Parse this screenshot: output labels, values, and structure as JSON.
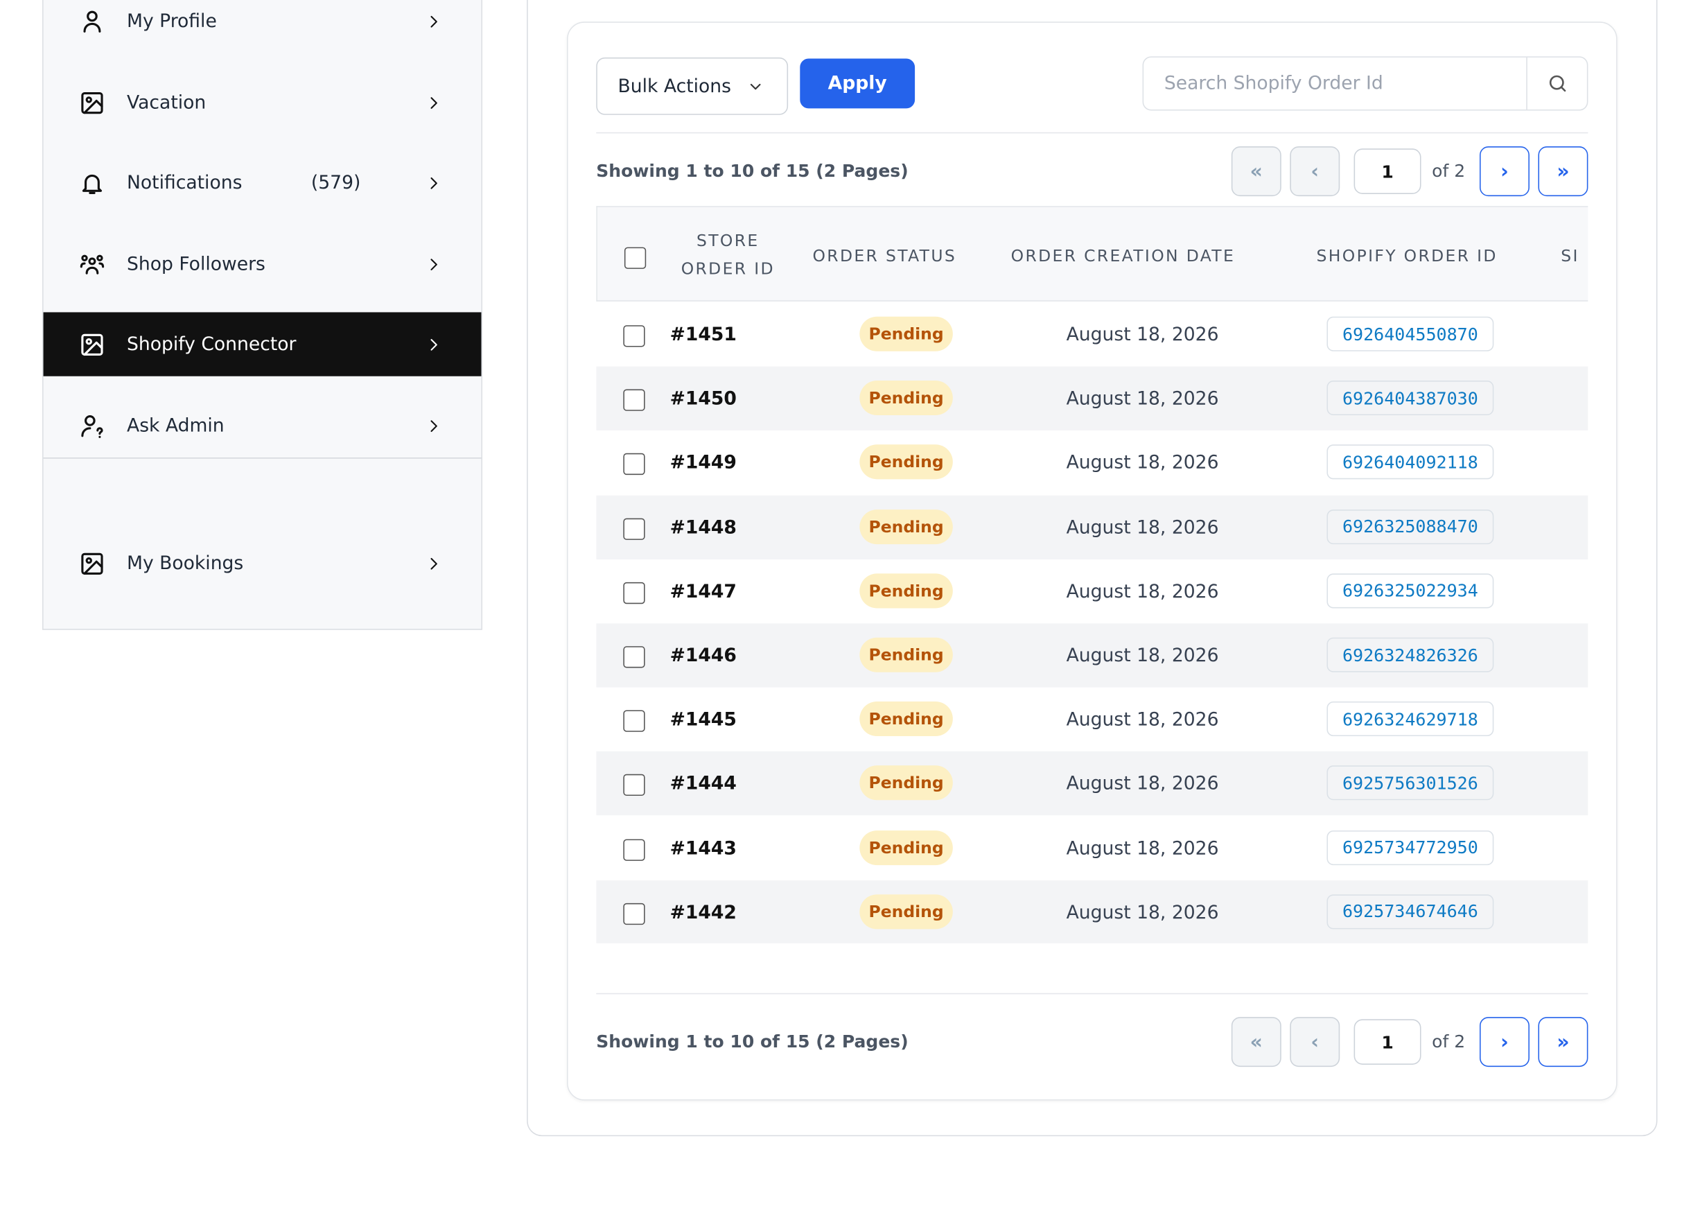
{
  "sidebar": {
    "items": [
      {
        "label": "My Profile"
      },
      {
        "label": "Vacation"
      },
      {
        "label": "Notifications",
        "count": "(579)"
      },
      {
        "label": "Shop Followers"
      },
      {
        "label": "Shopify Connector",
        "active": true
      },
      {
        "label": "Ask Admin"
      }
    ],
    "bottom_items": [
      {
        "label": "My Bookings"
      }
    ]
  },
  "toolbar": {
    "bulk_actions": "Bulk Actions",
    "apply": "Apply",
    "search_placeholder": "Search Shopify Order Id"
  },
  "pagination_top": {
    "summary": "Showing 1 to 10 of 15 (2 Pages)",
    "first": "«",
    "prev": "‹",
    "page": "1",
    "of": "of 2",
    "next": "›",
    "last": "»"
  },
  "table": {
    "headers": [
      "STORE ORDER ID",
      "ORDER STATUS",
      "ORDER CREATION DATE",
      "SHOPIFY ORDER ID",
      "SI"
    ],
    "rows": [
      [
        "#1451",
        "Pending",
        "August 18, 2026",
        "6926404550870"
      ],
      [
        "#1450",
        "Pending",
        "August 18, 2026",
        "6926404387030"
      ],
      [
        "#1449",
        "Pending",
        "August 18, 2026",
        "6926404092118"
      ],
      [
        "#1448",
        "Pending",
        "August 18, 2026",
        "6926325088470"
      ],
      [
        "#1447",
        "Pending",
        "August 18, 2026",
        "6926325022934"
      ],
      [
        "#1446",
        "Pending",
        "August 18, 2026",
        "6926324826326"
      ],
      [
        "#1445",
        "Pending",
        "August 18, 2026",
        "6926324629718"
      ],
      [
        "#1444",
        "Pending",
        "August 18, 2026",
        "6925756301526"
      ],
      [
        "#1443",
        "Pending",
        "August 18, 2026",
        "6925734772950"
      ],
      [
        "#1442",
        "Pending",
        "August 18, 2026",
        "6925734674646"
      ]
    ]
  },
  "pagination_bottom": {
    "summary": "Showing 1 to 10 of 15 (2 Pages)",
    "first": "«",
    "prev": "‹",
    "page": "1",
    "of": "of 2",
    "next": "›",
    "last": "»"
  }
}
